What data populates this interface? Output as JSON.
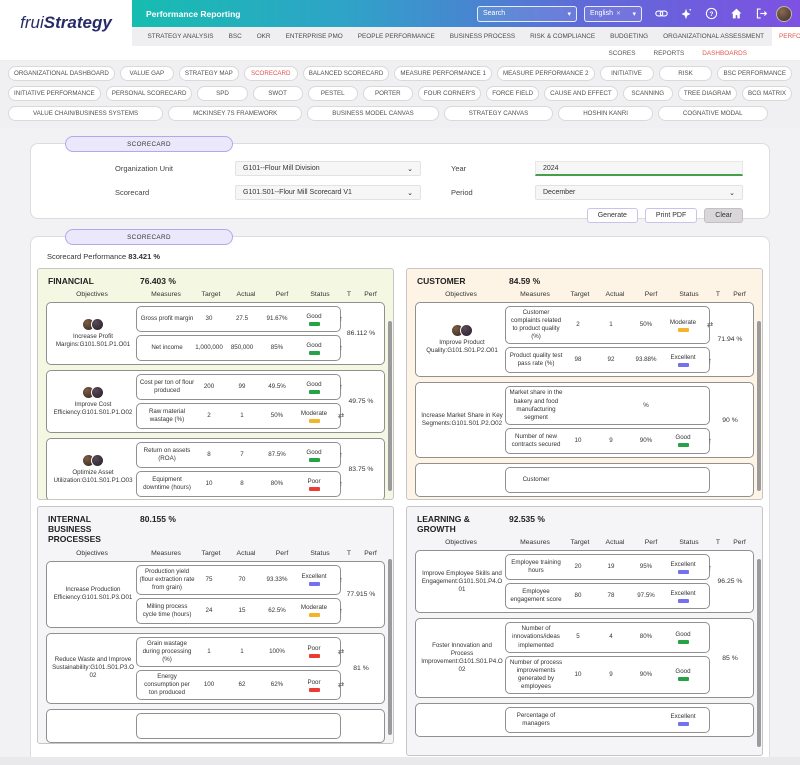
{
  "brand": {
    "frui": "frui",
    "strategy": "Strategy"
  },
  "header": {
    "title": "Performance Reporting",
    "search_placeholder": "Search",
    "language": "English",
    "icons": [
      "link-icon",
      "sparkle-icon",
      "help-icon",
      "home-icon",
      "logout-icon"
    ]
  },
  "menu": {
    "items": [
      "STRATEGY ANALYSIS",
      "BSC",
      "OKR",
      "ENTERPRISE PMO",
      "PEOPLE PERFORMANCE",
      "BUSINESS PROCESS",
      "RISK & COMPLIANCE",
      "BUDGETING",
      "ORGANIZATIONAL ASSESSMENT",
      "PERFORMANCE REPORTING",
      "OSM"
    ],
    "active": "PERFORMANCE REPORTING"
  },
  "submenu": {
    "items": [
      "SCORES",
      "REPORTS",
      "DASHBOARDS"
    ],
    "active": "DASHBOARDS"
  },
  "tabs": {
    "rows": [
      [
        "ORGANIZATIONAL DASHBOARD",
        "VALUE GAP",
        "STRATEGY MAP",
        "SCORECARD",
        "BALANCED SCORECARD",
        "MEASURE PERFORMANCE 1",
        "MEASURE PERFORMANCE 2",
        "INITIATIVE",
        "RISK",
        "BSC PERFORMANCE"
      ],
      [
        "INITIATIVE PERFORMANCE",
        "PERSONAL SCORECARD",
        "SPD",
        "SWOT",
        "PESTEL",
        "PORTER",
        "FOUR CORNER'S",
        "FORCE FIELD",
        "CAUSE AND EFFECT",
        "SCANNING",
        "TREE DIAGRAM",
        "BCG MATRIX"
      ],
      [
        "VALUE CHAIN/BUSINESS SYSTEMS",
        "MCKINSEY 7S FRAMEWORK",
        "BUSINESS MODEL CANVAS",
        "STRATEGY CANVAS",
        "HOSHIN KANRI",
        "COGNATIVE MODAL"
      ]
    ],
    "active": "SCORECARD"
  },
  "filter_card": {
    "tab_label": "SCORECARD",
    "org_unit": {
      "label": "Organization Unit",
      "value": "G101--Flour Mill Division"
    },
    "scorecard": {
      "label": "Scorecard",
      "value": "G101.S01--Flour Mill Scorecard V1"
    },
    "year": {
      "label": "Year",
      "value": "2024"
    },
    "period": {
      "label": "Period",
      "value": "December"
    },
    "buttons": [
      "Generate",
      "Print PDF",
      "Clear"
    ]
  },
  "status_colors": {
    "Good": "#27a347",
    "Moderate": "#f3b32b",
    "Poor": "#ea3c34",
    "Excellent": "#7470ee"
  },
  "results": {
    "tab_label": "SCORECARD",
    "performance_label": "Scorecard Performance",
    "performance_value": "83.421 %",
    "columns": [
      "Objectives",
      "Measures",
      "Target",
      "Actual",
      "Perf",
      "Status",
      "T",
      "Perf"
    ],
    "panels": [
      {
        "name": "FINANCIAL",
        "pct": "76.403 %",
        "theme": "green",
        "objectives": [
          {
            "name": "Increase Profit Margins:G101.S01.P1.O01",
            "avatars": 2,
            "perf": "86.112 %",
            "measures": [
              {
                "name": "Gross profit margin",
                "target": "30",
                "actual": "27.5",
                "perf": "91.67%",
                "status": "Good",
                "trend": "up"
              },
              {
                "name": "Net income",
                "target": "1,000,000",
                "actual": "850,000",
                "perf": "85%",
                "status": "Good",
                "trend": "up"
              }
            ]
          },
          {
            "name": "Improve Cost Efficiency:G101.S01.P1.O02",
            "avatars": 2,
            "perf": "49.75 %",
            "measures": [
              {
                "name": "Cost per ton of flour produced",
                "target": "200",
                "actual": "99",
                "perf": "49.5%",
                "status": "Good",
                "trend": "up"
              },
              {
                "name": "Raw material wastage (%)",
                "target": "2",
                "actual": "1",
                "perf": "50%",
                "status": "Moderate",
                "trend": "swap"
              }
            ]
          },
          {
            "name": "Optimize Asset Utilization:G101.S01.P1.O03",
            "avatars": 2,
            "perf": "83.75 %",
            "measures": [
              {
                "name": "Return on assets (ROA)",
                "target": "8",
                "actual": "7",
                "perf": "87.5%",
                "status": "Good",
                "trend": "up"
              },
              {
                "name": "Equipment downtime (hours)",
                "target": "10",
                "actual": "8",
                "perf": "80%",
                "status": "Poor",
                "trend": "up"
              }
            ]
          }
        ]
      },
      {
        "name": "CUSTOMER",
        "pct": "84.59 %",
        "theme": "cream",
        "objectives": [
          {
            "name": "Improve Product Quality:G101.S01.P2.O01",
            "avatars": 2,
            "perf": "71.94 %",
            "measures": [
              {
                "name": "Customer complaints related to product quality (%)",
                "target": "2",
                "actual": "1",
                "perf": "50%",
                "status": "Moderate",
                "trend": "swap"
              },
              {
                "name": "Product quality test pass rate (%)",
                "target": "98",
                "actual": "92",
                "perf": "93.88%",
                "status": "Excellent",
                "trend": "up"
              }
            ]
          },
          {
            "name": "Increase Market Share in Key Segments:G101.S01.P2.O02",
            "avatars": 0,
            "perf": "90 %",
            "measures": [
              {
                "name": "Market share in the bakery and food manufacturing segment",
                "target": "",
                "actual": "",
                "perf": "%",
                "status": "",
                "trend": ""
              },
              {
                "name": "Number of new contracts secured",
                "target": "10",
                "actual": "9",
                "perf": "90%",
                "status": "Good",
                "trend": "up"
              }
            ]
          },
          {
            "name": "",
            "avatars": 0,
            "perf": "",
            "measures": [
              {
                "name": "Customer",
                "target": "",
                "actual": "",
                "perf": "",
                "status": "",
                "trend": ""
              }
            ]
          }
        ]
      },
      {
        "name": "INTERNAL BUSINESS PROCESSES",
        "pct": "80.155 %",
        "theme": "gray",
        "objectives": [
          {
            "name": "Increase Production Efficiency:G101.S01.P3.O01",
            "avatars": 0,
            "perf": "77.915 %",
            "measures": [
              {
                "name": "Production yield (flour extraction rate from grain)",
                "target": "75",
                "actual": "70",
                "perf": "93.33%",
                "status": "Excellent",
                "trend": "up"
              },
              {
                "name": "Milling process cycle time (hours)",
                "target": "24",
                "actual": "15",
                "perf": "62.5%",
                "status": "Moderate",
                "trend": "up"
              }
            ]
          },
          {
            "name": "Reduce Waste and Improve Sustainability:G101.S01.P3.O02",
            "avatars": 0,
            "perf": "81 %",
            "measures": [
              {
                "name": "Grain wastage during processing (%)",
                "target": "1",
                "actual": "1",
                "perf": "100%",
                "status": "Poor",
                "trend": "swap"
              },
              {
                "name": "Energy consumption per ton produced",
                "target": "100",
                "actual": "62",
                "perf": "62%",
                "status": "Poor",
                "trend": "swap"
              }
            ]
          },
          {
            "name": "",
            "avatars": 0,
            "perf": "",
            "measures": [
              {
                "name": "",
                "target": "",
                "actual": "",
                "perf": "",
                "status": "",
                "trend": ""
              }
            ]
          }
        ]
      },
      {
        "name": "LEARNING & GROWTH",
        "pct": "92.535 %",
        "theme": "gray",
        "objectives": [
          {
            "name": "Improve Employee Skills and Engagement:G101.S01.P4.O01",
            "avatars": 0,
            "perf": "96.25 %",
            "measures": [
              {
                "name": "Employee training hours",
                "target": "20",
                "actual": "19",
                "perf": "95%",
                "status": "Excellent",
                "trend": "up"
              },
              {
                "name": "Employee engagement score",
                "target": "80",
                "actual": "78",
                "perf": "97.5%",
                "status": "Excellent",
                "trend": ""
              }
            ]
          },
          {
            "name": "Foster Innovation and Process Improvement:G101.S01.P4.O02",
            "avatars": 0,
            "perf": "85 %",
            "measures": [
              {
                "name": "Number of innovations/ideas implemented",
                "target": "5",
                "actual": "4",
                "perf": "80%",
                "status": "Good",
                "trend": ""
              },
              {
                "name": "Number of process improvements generated by employees",
                "target": "10",
                "actual": "9",
                "perf": "90%",
                "status": "Good",
                "trend": ""
              }
            ]
          },
          {
            "name": "",
            "avatars": 0,
            "perf": "",
            "measures": [
              {
                "name": "Percentage of managers",
                "target": "",
                "actual": "",
                "perf": "",
                "status": "Excellent",
                "trend": ""
              }
            ]
          }
        ]
      }
    ]
  }
}
